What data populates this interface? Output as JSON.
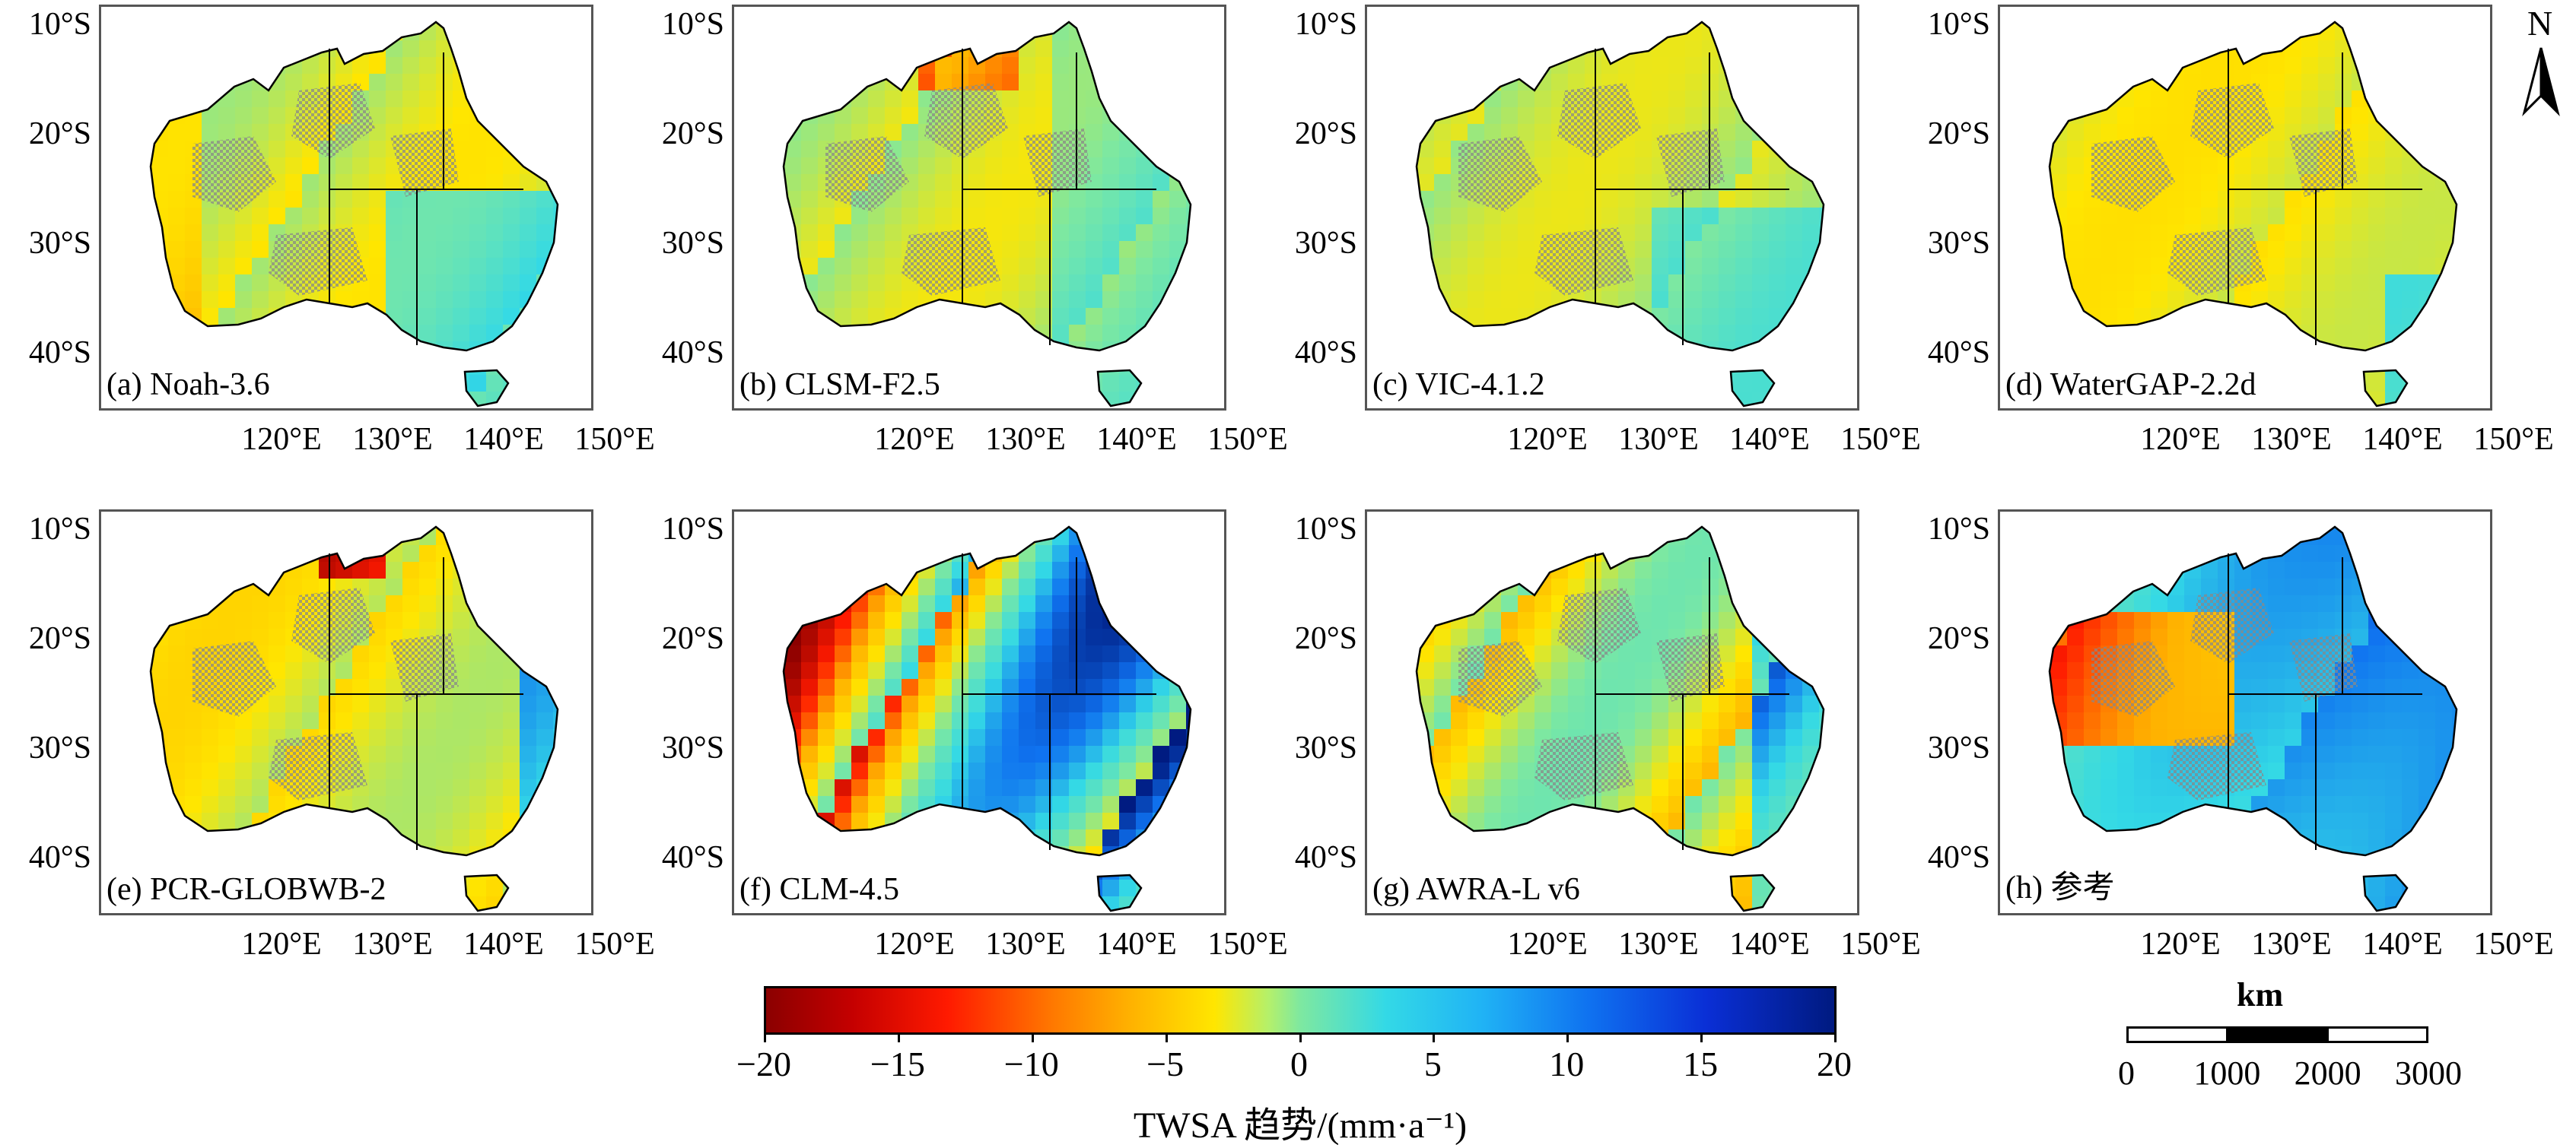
{
  "panels": [
    {
      "label": "(a) Noah-3.6"
    },
    {
      "label": "(b) CLSM-F2.5"
    },
    {
      "label": "(c) VIC-4.1.2"
    },
    {
      "label": "(d) WaterGAP-2.2d"
    },
    {
      "label": "(e) PCR-GLOBWB-2"
    },
    {
      "label": "(f) CLM-4.5"
    },
    {
      "label": "(g) AWRA-L v6"
    },
    {
      "label": "(h) 参考"
    }
  ],
  "lat_ticks": [
    "10°S",
    "20°S",
    "30°S",
    "40°S"
  ],
  "lon_ticks": [
    "120°E",
    "130°E",
    "140°E",
    "150°E"
  ],
  "colorbar": {
    "ticks": [
      "−20",
      "−15",
      "−10",
      "−5",
      "0",
      "5",
      "10",
      "15",
      "20"
    ],
    "range": [
      -20,
      20
    ],
    "title": "TWSA 趋势/(mm·a⁻¹)",
    "colors": [
      "#8b0000",
      "#ff1a00",
      "#ffb100",
      "#ffe600",
      "#7ee8a0",
      "#33d9e6",
      "#0f72f0",
      "#001a80"
    ]
  },
  "north_arrow": {
    "label": "N"
  },
  "scale_bar": {
    "unit": "km",
    "ticks": [
      "0",
      "1000",
      "2000",
      "3000"
    ]
  }
}
